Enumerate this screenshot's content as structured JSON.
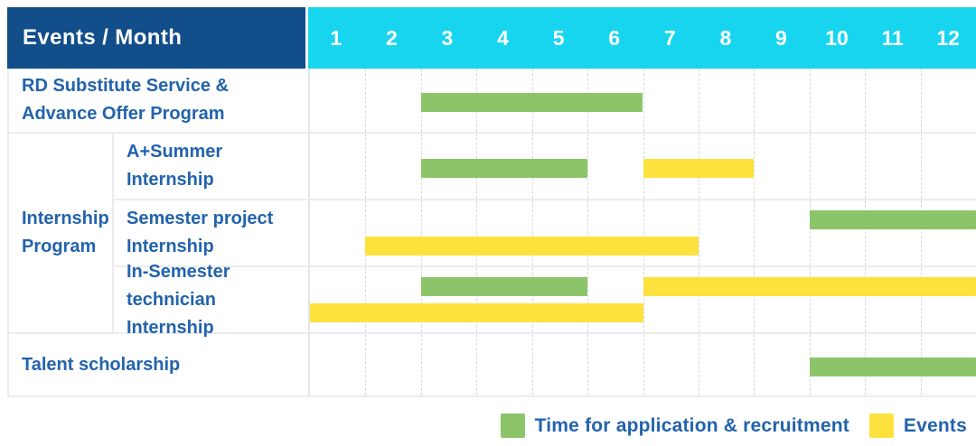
{
  "header": {
    "title": "Events / Month",
    "months": [
      "1",
      "2",
      "3",
      "4",
      "5",
      "6",
      "7",
      "8",
      "9",
      "10",
      "11",
      "12"
    ]
  },
  "colors": {
    "header_bg": "#124E89",
    "months_bg": "#18D5EF",
    "label_text": "#2263AC",
    "application_green": "#8CC46A",
    "events_yellow": "#FDE23E"
  },
  "legend": {
    "application": {
      "label": "Time for application & recruitment",
      "color": "#8CC46A"
    },
    "events": {
      "label": "Events",
      "color": "#FDE23E"
    }
  },
  "chart_data": {
    "type": "gantt",
    "x_axis": {
      "label": "Month",
      "ticks": [
        1,
        2,
        3,
        4,
        5,
        6,
        7,
        8,
        9,
        10,
        11,
        12
      ],
      "range": [
        1,
        12
      ]
    },
    "series": [
      {
        "name": "Time for application & recruitment",
        "color": "#8CC46A"
      },
      {
        "name": "Events",
        "color": "#FDE23E"
      }
    ],
    "rows": [
      {
        "group": null,
        "label": "RD Substitute Service &\nAdvance Offer Program",
        "bars": [
          {
            "series": "Time for application & recruitment",
            "start_month": 3,
            "end_month": 6,
            "lane": "center"
          }
        ]
      },
      {
        "group": "Internship\nProgram",
        "label": "A+Summer\nInternship",
        "bars": [
          {
            "series": "Time for application & recruitment",
            "start_month": 3,
            "end_month": 5,
            "lane": "center"
          },
          {
            "series": "Events",
            "start_month": 7,
            "end_month": 8,
            "lane": "center"
          }
        ]
      },
      {
        "group": "Internship\nProgram",
        "label": "Semester project\nInternship",
        "bars": [
          {
            "series": "Time for application & recruitment",
            "start_month": 10,
            "end_month": 12,
            "lane": "top"
          },
          {
            "series": "Events",
            "start_month": 2,
            "end_month": 7,
            "lane": "bottom"
          }
        ]
      },
      {
        "group": "Internship\nProgram",
        "label": "In-Semester\ntechnician Internship",
        "bars": [
          {
            "series": "Time for application & recruitment",
            "start_month": 3,
            "end_month": 5,
            "lane": "top"
          },
          {
            "series": "Events",
            "start_month": 7,
            "end_month": 12,
            "lane": "top"
          },
          {
            "series": "Events",
            "start_month": 1,
            "end_month": 6,
            "lane": "bottom"
          }
        ]
      },
      {
        "group": null,
        "label": "Talent scholarship",
        "bars": [
          {
            "series": "Time for application & recruitment",
            "start_month": 10,
            "end_month": 12,
            "lane": "center"
          }
        ]
      }
    ]
  }
}
